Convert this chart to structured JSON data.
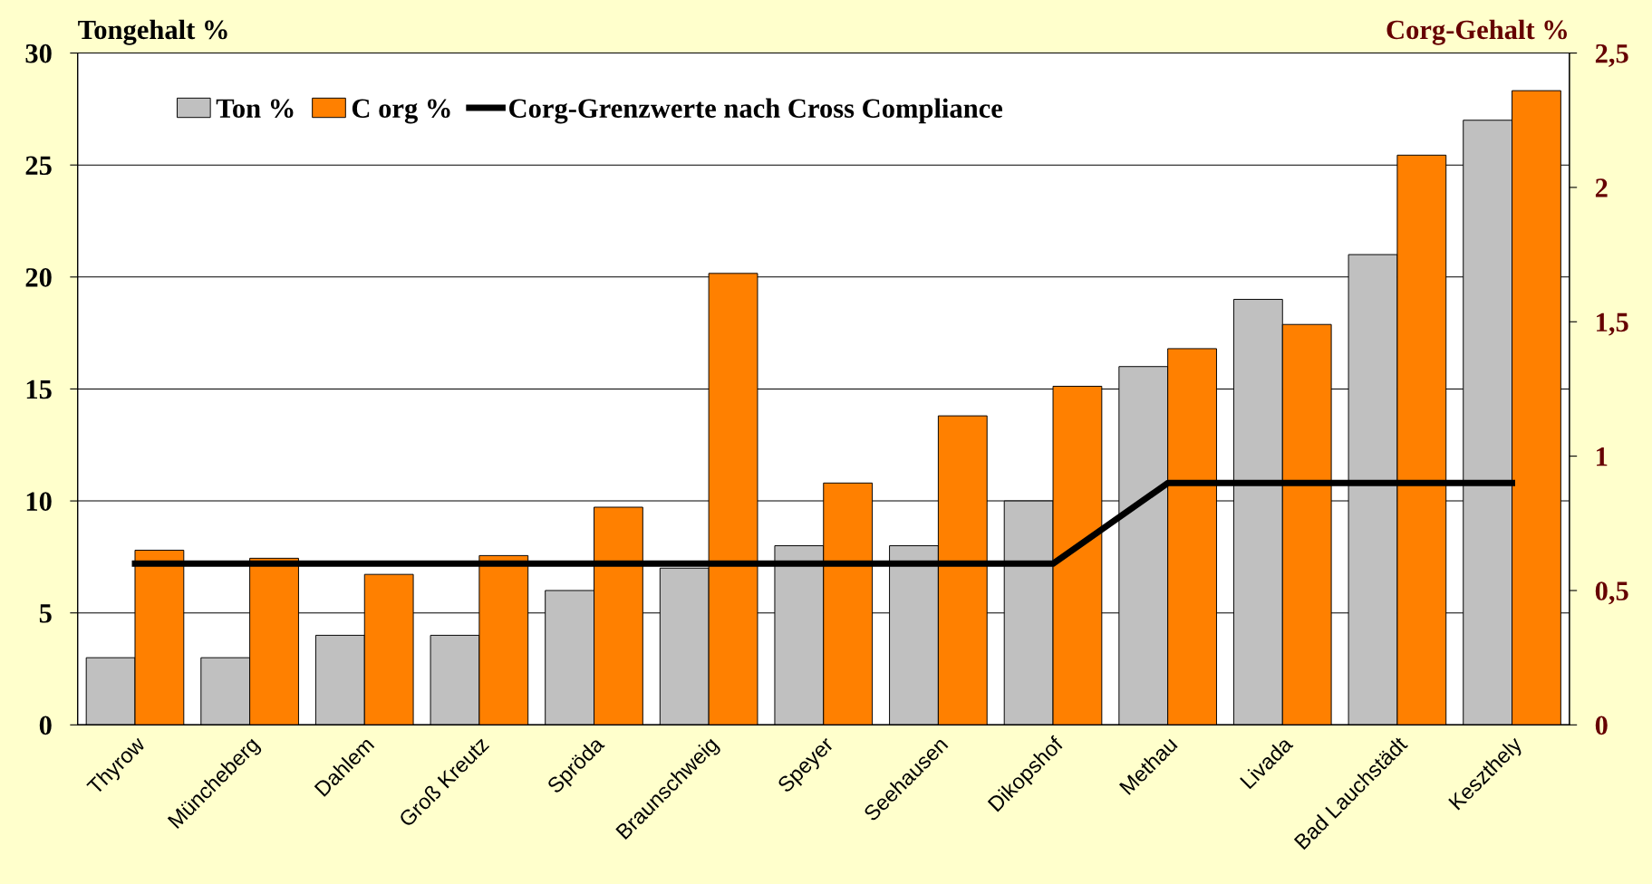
{
  "chart_data": {
    "type": "bar",
    "ylabel": "Tongehalt %",
    "y2label": "Corg-Gehalt %",
    "categories": [
      "Thyrow",
      "Müncheberg",
      "Dahlem",
      "Groß Kreutz",
      "Spröda",
      "Braunschweig",
      "Speyer",
      "Seehausen",
      "Dikopshof",
      "Methau",
      "Livada",
      "Bad Lauchstädt",
      "Keszthely"
    ],
    "series": [
      {
        "name": "Ton %",
        "color": "#c0c0c0",
        "values": [
          3,
          3,
          4,
          4,
          6,
          7,
          8,
          8,
          10,
          16,
          19,
          21,
          27
        ]
      },
      {
        "name": "C org %",
        "axis": "y2",
        "color": "#ff8000",
        "values": [
          0.65,
          0.62,
          0.56,
          0.63,
          0.81,
          1.68,
          0.9,
          1.15,
          1.26,
          1.4,
          1.49,
          2.12,
          2.36
        ]
      },
      {
        "name": "Corg-Grenzwerte nach Cross Compliance",
        "type": "line",
        "axis": "y2",
        "color": "#000000",
        "values": [
          0.6,
          0.6,
          0.6,
          0.6,
          0.6,
          0.6,
          0.6,
          0.6,
          0.6,
          0.9,
          0.9,
          0.9,
          0.9
        ]
      }
    ],
    "ylim": [
      0,
      30
    ],
    "yticks": [
      0,
      5,
      10,
      15,
      20,
      25,
      30
    ],
    "y2lim": [
      0,
      2.5
    ],
    "y2ticks": [
      0,
      {
        "value": 0.5,
        "label": "0,5"
      },
      1,
      {
        "value": 1.5,
        "label": "1,5"
      },
      2,
      {
        "value": 2.5,
        "label": "2,5"
      }
    ],
    "grid": "y",
    "legend": "top left",
    "marker": "none",
    "line_style": "solid"
  }
}
